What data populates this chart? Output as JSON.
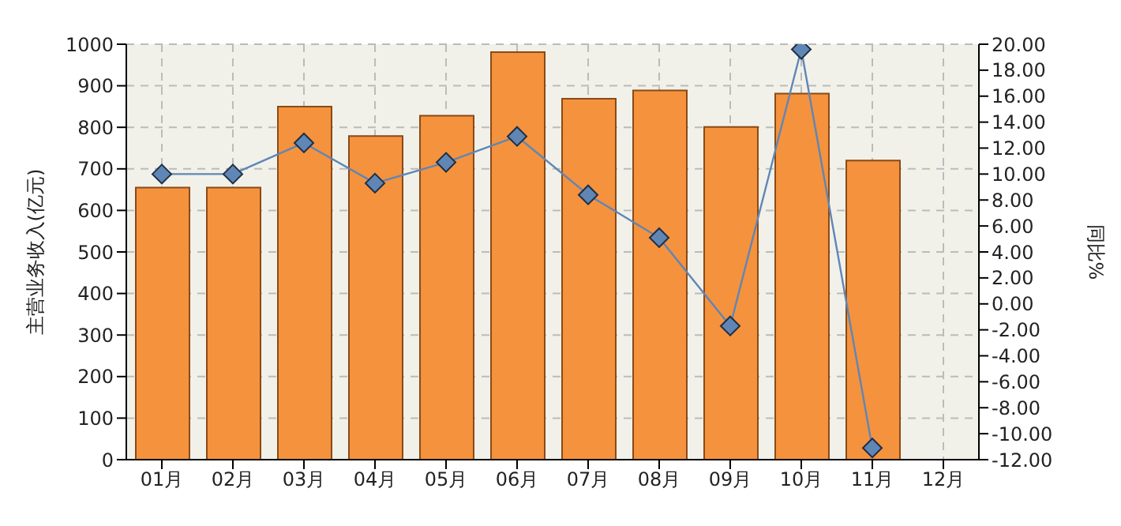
{
  "chart_data": {
    "type": "bar",
    "ylabel": "主营业务收入(亿元)",
    "y2label": "同比%",
    "categories": [
      "01月",
      "02月",
      "03月",
      "04月",
      "05月",
      "06月",
      "07月",
      "08月",
      "09月",
      "10月",
      "11月",
      "12月"
    ],
    "series": [
      {
        "color": "#f5923e",
        "values": [
          655,
          655,
          850,
          779,
          828,
          981,
          869,
          889,
          801,
          881,
          720,
          null
        ]
      },
      {
        "type": "line",
        "axis": "y2",
        "color": "#5f86b5",
        "marker": "diamond",
        "values": [
          10.0,
          10.0,
          12.4,
          9.3,
          10.9,
          12.9,
          8.4,
          5.1,
          -1.7,
          19.6,
          -11.1,
          null
        ]
      }
    ],
    "ylim": [
      0,
      1000
    ],
    "yticks": [
      0,
      100,
      200,
      300,
      400,
      500,
      600,
      700,
      800,
      900,
      1000
    ],
    "y2lim": [
      -12,
      20
    ],
    "y2ticks": [
      {
        "value": -12,
        "label": "-12.00"
      },
      {
        "value": -10,
        "label": "-10.00"
      },
      {
        "value": -8,
        "label": "-8.00"
      },
      {
        "value": -6,
        "label": "-6.00"
      },
      {
        "value": -4,
        "label": "-4.00"
      },
      {
        "value": -2,
        "label": "-2.00"
      },
      {
        "value": 0,
        "label": "0.00"
      },
      {
        "value": 2,
        "label": "2.00"
      },
      {
        "value": 4,
        "label": "4.00"
      },
      {
        "value": 6,
        "label": "6.00"
      },
      {
        "value": 8,
        "label": "8.00"
      },
      {
        "value": 10,
        "label": "10.00"
      },
      {
        "value": 12,
        "label": "12.00"
      },
      {
        "value": 14,
        "label": "14.00"
      },
      {
        "value": 16,
        "label": "16.00"
      },
      {
        "value": 18,
        "label": "18.00"
      },
      {
        "value": 20,
        "label": "20.00"
      }
    ],
    "grid": true,
    "legend": false
  }
}
